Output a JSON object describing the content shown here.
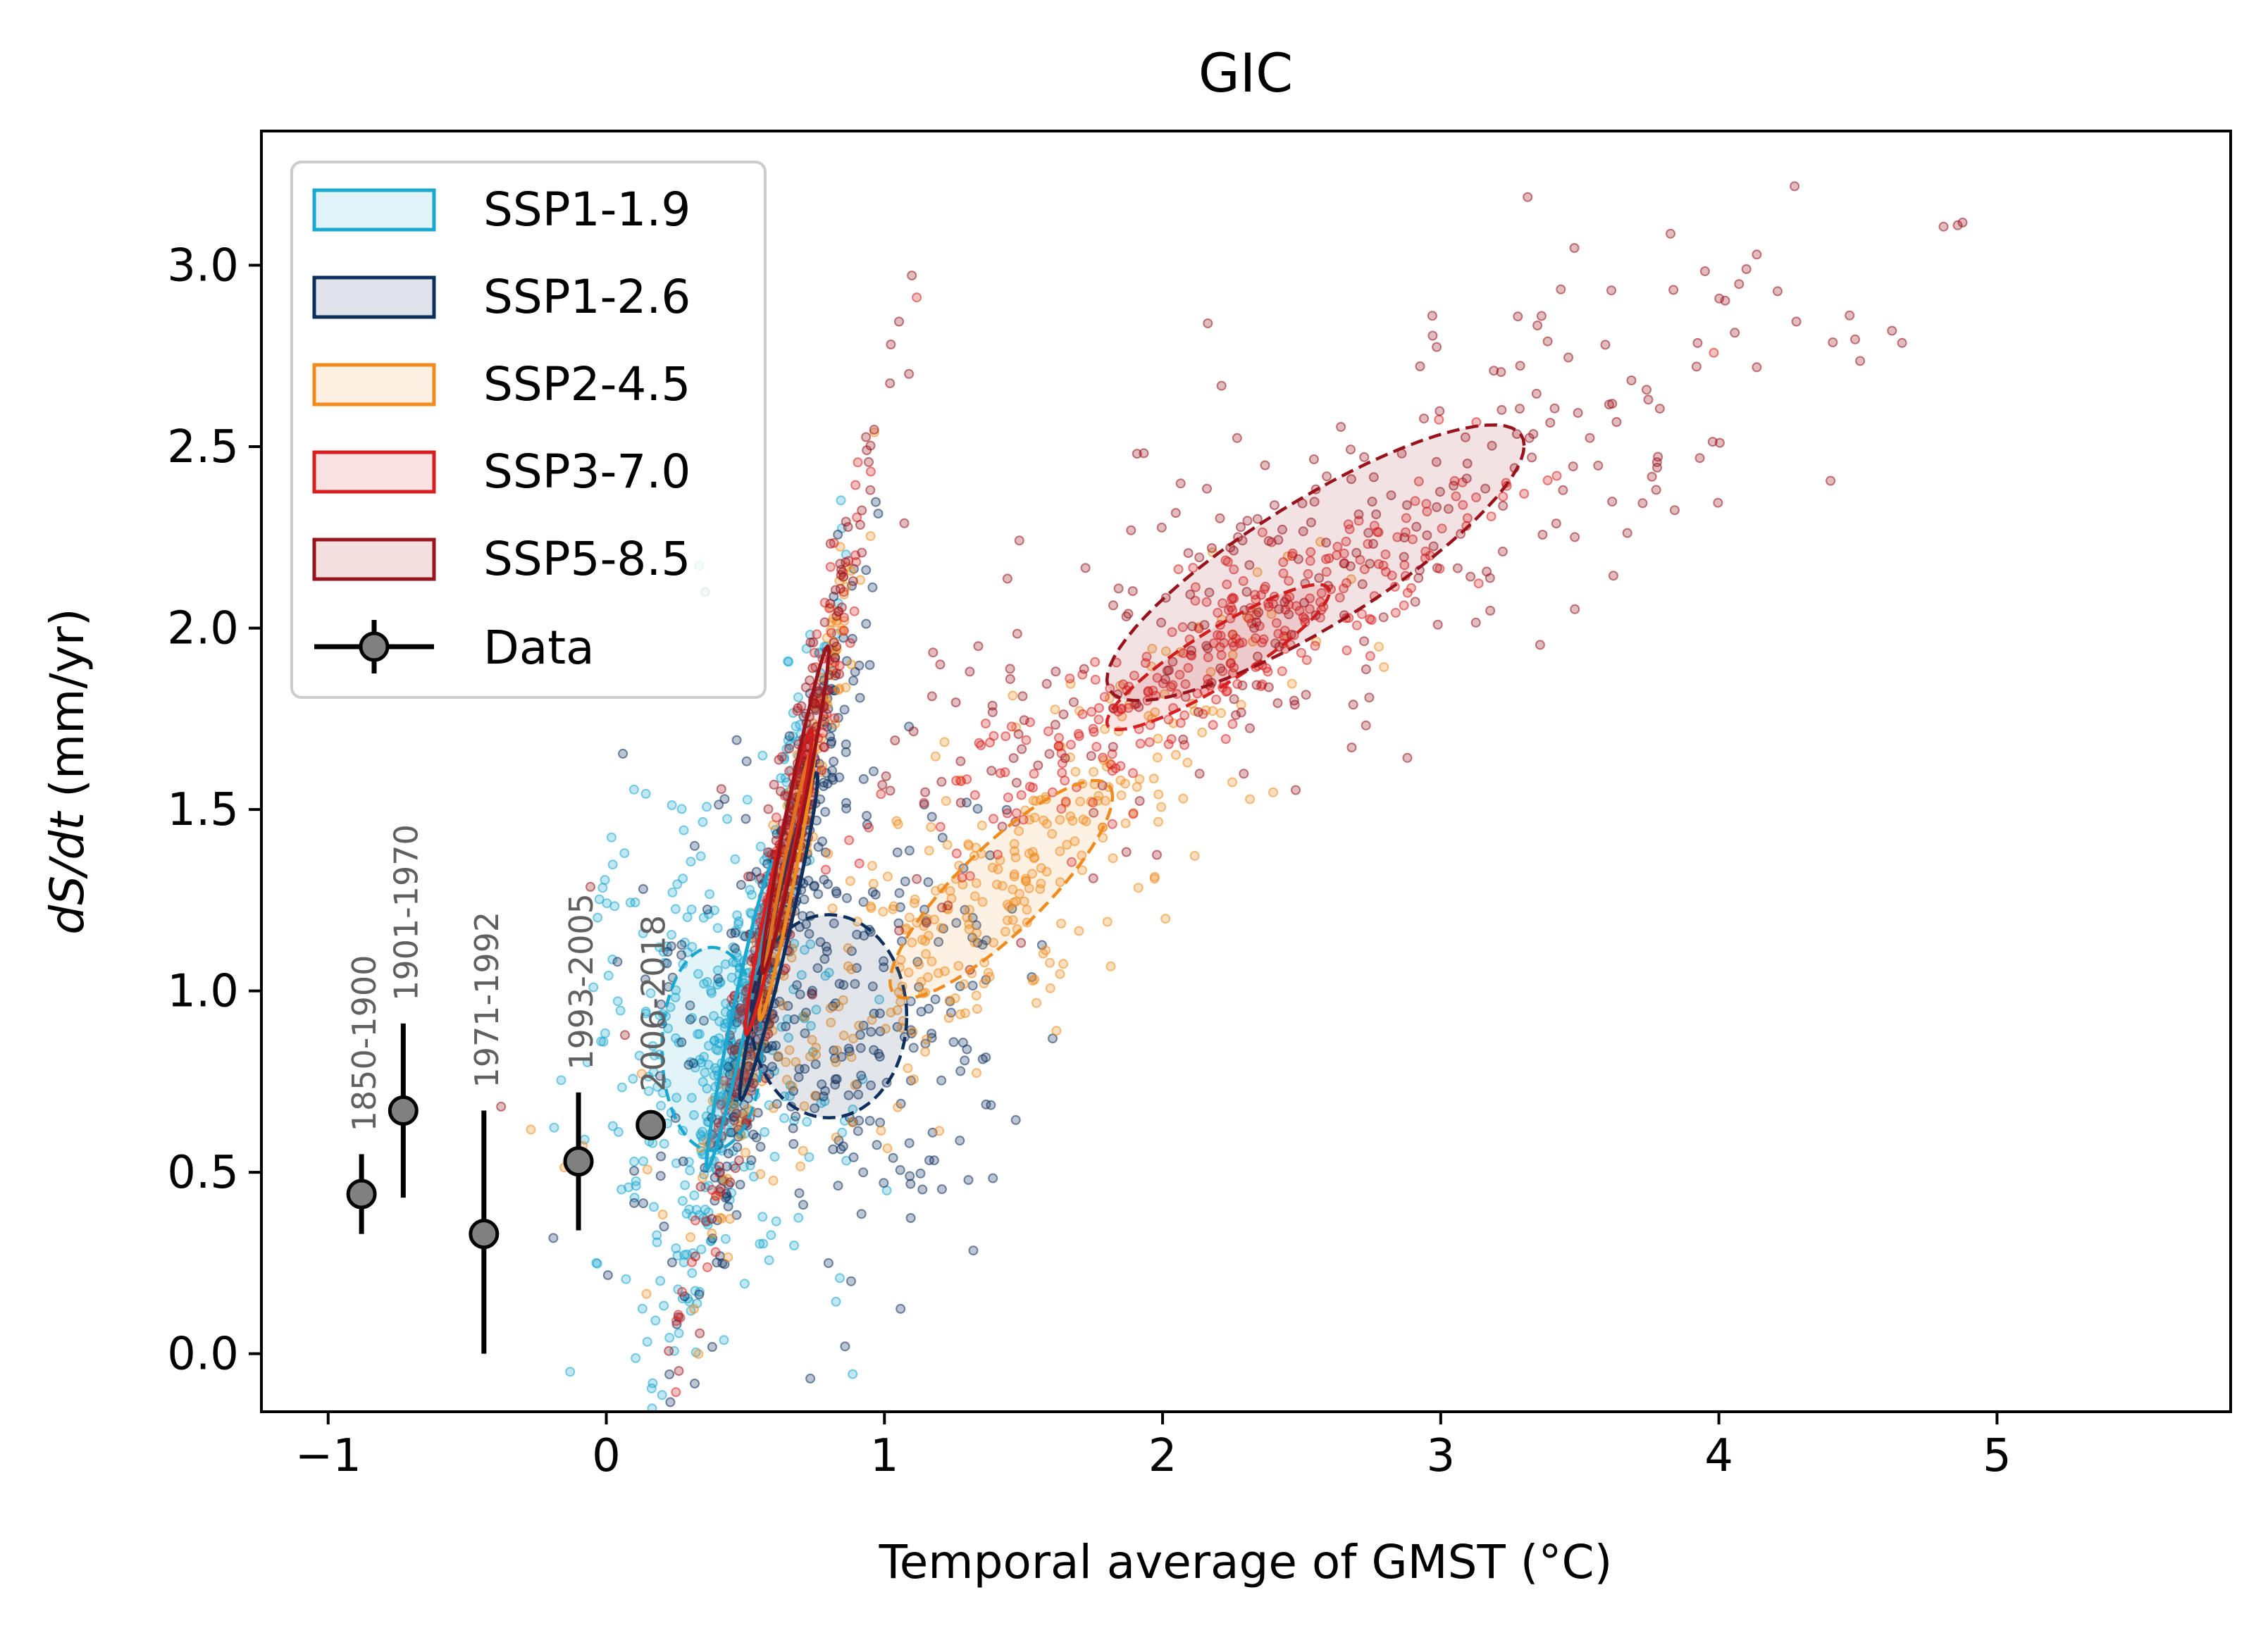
{
  "chart_data": {
    "type": "scatter",
    "title": "GIC",
    "xlabel": "Temporal average of GMST (°C)",
    "ylabel_italic": "dS/dt",
    "ylabel_unit": " (mm/yr)",
    "xlim": [
      -1.24,
      5.84
    ],
    "ylim": [
      -0.16,
      3.37
    ],
    "xticks": [
      -1,
      0,
      1,
      2,
      3,
      4,
      5
    ],
    "xtick_labels": [
      "−1",
      "0",
      "1",
      "2",
      "3",
      "4",
      "5"
    ],
    "yticks": [
      0.0,
      0.5,
      1.0,
      1.5,
      2.0,
      2.5,
      3.0
    ],
    "ytick_labels": [
      "0.0",
      "0.5",
      "1.0",
      "1.5",
      "2.0",
      "2.5",
      "3.0"
    ],
    "grid": false,
    "legend_position": "upper-left",
    "series": [
      {
        "name": "SSP1-1.9",
        "color": "#1ba8d0",
        "count": 500,
        "center": [
          0.48,
          0.92
        ],
        "ellipses": [
          {
            "cx": 0.38,
            "cy": 0.84,
            "sx": 0.18,
            "sy": 0.28,
            "rho": 0.0,
            "dashed": true
          },
          {
            "cx": 0.48,
            "cy": 0.93,
            "sx": 0.12,
            "sy": 0.42,
            "rho": 0.97,
            "dashed": false
          }
        ]
      },
      {
        "name": "SSP1-2.6",
        "color": "#0d2f5e",
        "count": 500,
        "center": [
          0.7,
          1.05
        ],
        "ellipses": [
          {
            "cx": 0.8,
            "cy": 0.93,
            "sx": 0.28,
            "sy": 0.28,
            "rho": 0.0,
            "dashed": true
          },
          {
            "cx": 0.62,
            "cy": 1.15,
            "sx": 0.14,
            "sy": 0.45,
            "rho": 0.97,
            "dashed": false
          }
        ]
      },
      {
        "name": "SSP2-4.5",
        "color": "#f08c1e",
        "count": 500,
        "center": [
          1.1,
          1.3
        ],
        "ellipses": [
          {
            "cx": 1.42,
            "cy": 1.28,
            "sx": 0.4,
            "sy": 0.3,
            "rho": 0.85,
            "dashed": true
          },
          {
            "cx": 0.65,
            "cy": 1.3,
            "sx": 0.1,
            "sy": 0.38,
            "rho": 0.97,
            "dashed": false
          }
        ]
      },
      {
        "name": "SSP3-7.0",
        "color": "#d81e1e",
        "count": 500,
        "center": [
          1.5,
          1.65
        ],
        "ellipses": [
          {
            "cx": 2.2,
            "cy": 1.92,
            "sx": 0.4,
            "sy": 0.2,
            "rho": 0.9,
            "dashed": true
          },
          {
            "cx": 0.62,
            "cy": 1.3,
            "sx": 0.12,
            "sy": 0.42,
            "rho": 0.97,
            "dashed": false
          }
        ]
      },
      {
        "name": "SSP5-8.5",
        "color": "#98131b",
        "count": 500,
        "center": [
          2.4,
          2.1
        ],
        "ellipses": [
          {
            "cx": 2.55,
            "cy": 2.18,
            "sx": 0.75,
            "sy": 0.38,
            "rho": 0.85,
            "dashed": true
          },
          {
            "cx": 0.68,
            "cy": 1.5,
            "sx": 0.12,
            "sy": 0.45,
            "rho": 0.97,
            "dashed": false
          }
        ]
      }
    ],
    "data_points": {
      "name": "Data",
      "color": "#808080",
      "points": [
        {
          "label": "1850-1900",
          "x": -0.88,
          "y": 0.44,
          "ylow": 0.33,
          "yhigh": 0.55
        },
        {
          "label": "1901-1970",
          "x": -0.73,
          "y": 0.67,
          "ylow": 0.43,
          "yhigh": 0.91
        },
        {
          "label": "1971-1992",
          "x": -0.44,
          "y": 0.33,
          "ylow": 0.0,
          "yhigh": 0.67
        },
        {
          "label": "1993-2005",
          "x": -0.1,
          "y": 0.53,
          "ylow": 0.34,
          "yhigh": 0.72
        },
        {
          "label": "2006-2018",
          "x": 0.16,
          "y": 0.63,
          "ylow": 0.6,
          "yhigh": 0.66
        }
      ]
    }
  }
}
